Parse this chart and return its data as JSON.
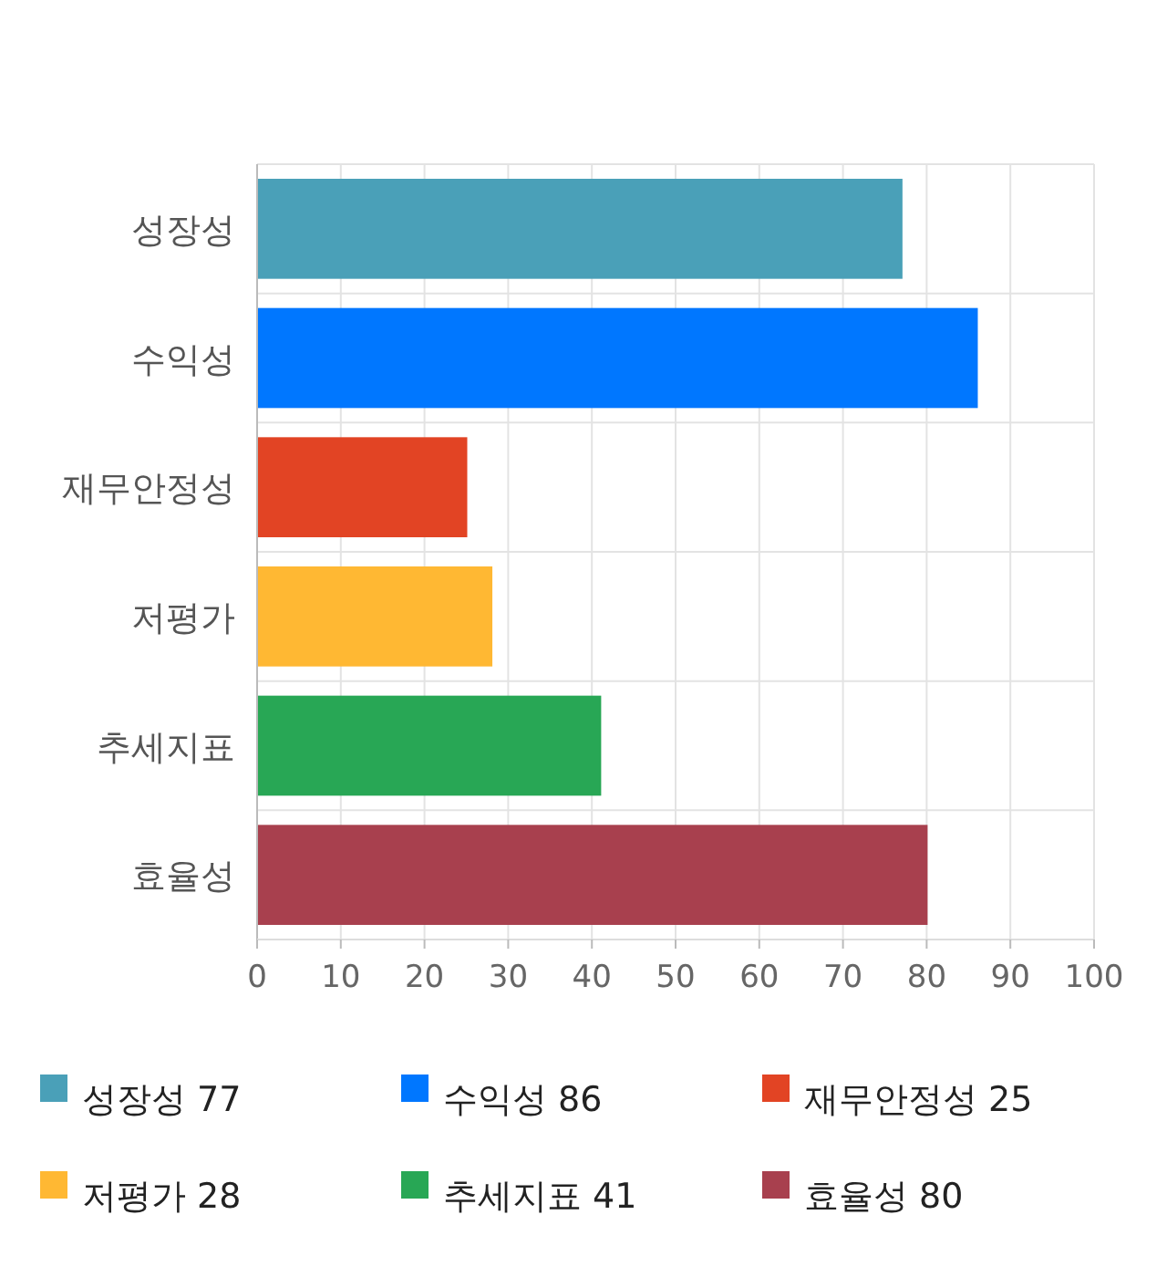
{
  "chart_data": {
    "type": "bar",
    "orientation": "horizontal",
    "stacked": true,
    "categories": [
      "성장성",
      "수익성",
      "재무안정성",
      "저평가",
      "추세지표",
      "효율성"
    ],
    "series": [
      {
        "name": "성장성 77",
        "color": "#4aa0b8",
        "values": [
          77,
          null,
          null,
          null,
          null,
          null
        ]
      },
      {
        "name": "수익성 86",
        "color": "#0077ff",
        "values": [
          null,
          86,
          null,
          null,
          null,
          null
        ]
      },
      {
        "name": "재무안정성 25",
        "color": "#e24424",
        "values": [
          null,
          null,
          25,
          null,
          null,
          null
        ]
      },
      {
        "name": "저평가 28",
        "color": "#ffb833",
        "values": [
          null,
          null,
          null,
          28,
          null,
          null
        ]
      },
      {
        "name": "추세지표 41",
        "color": "#28a755",
        "values": [
          null,
          null,
          null,
          null,
          41,
          null
        ]
      },
      {
        "name": "효율성 80",
        "color": "#a8404e",
        "values": [
          null,
          null,
          null,
          null,
          null,
          80
        ]
      }
    ],
    "xlim": [
      0,
      100
    ],
    "xticks": [
      0,
      10,
      20,
      30,
      40,
      50,
      60,
      70,
      80,
      90,
      100
    ],
    "grid": true,
    "legend": "bottom"
  }
}
